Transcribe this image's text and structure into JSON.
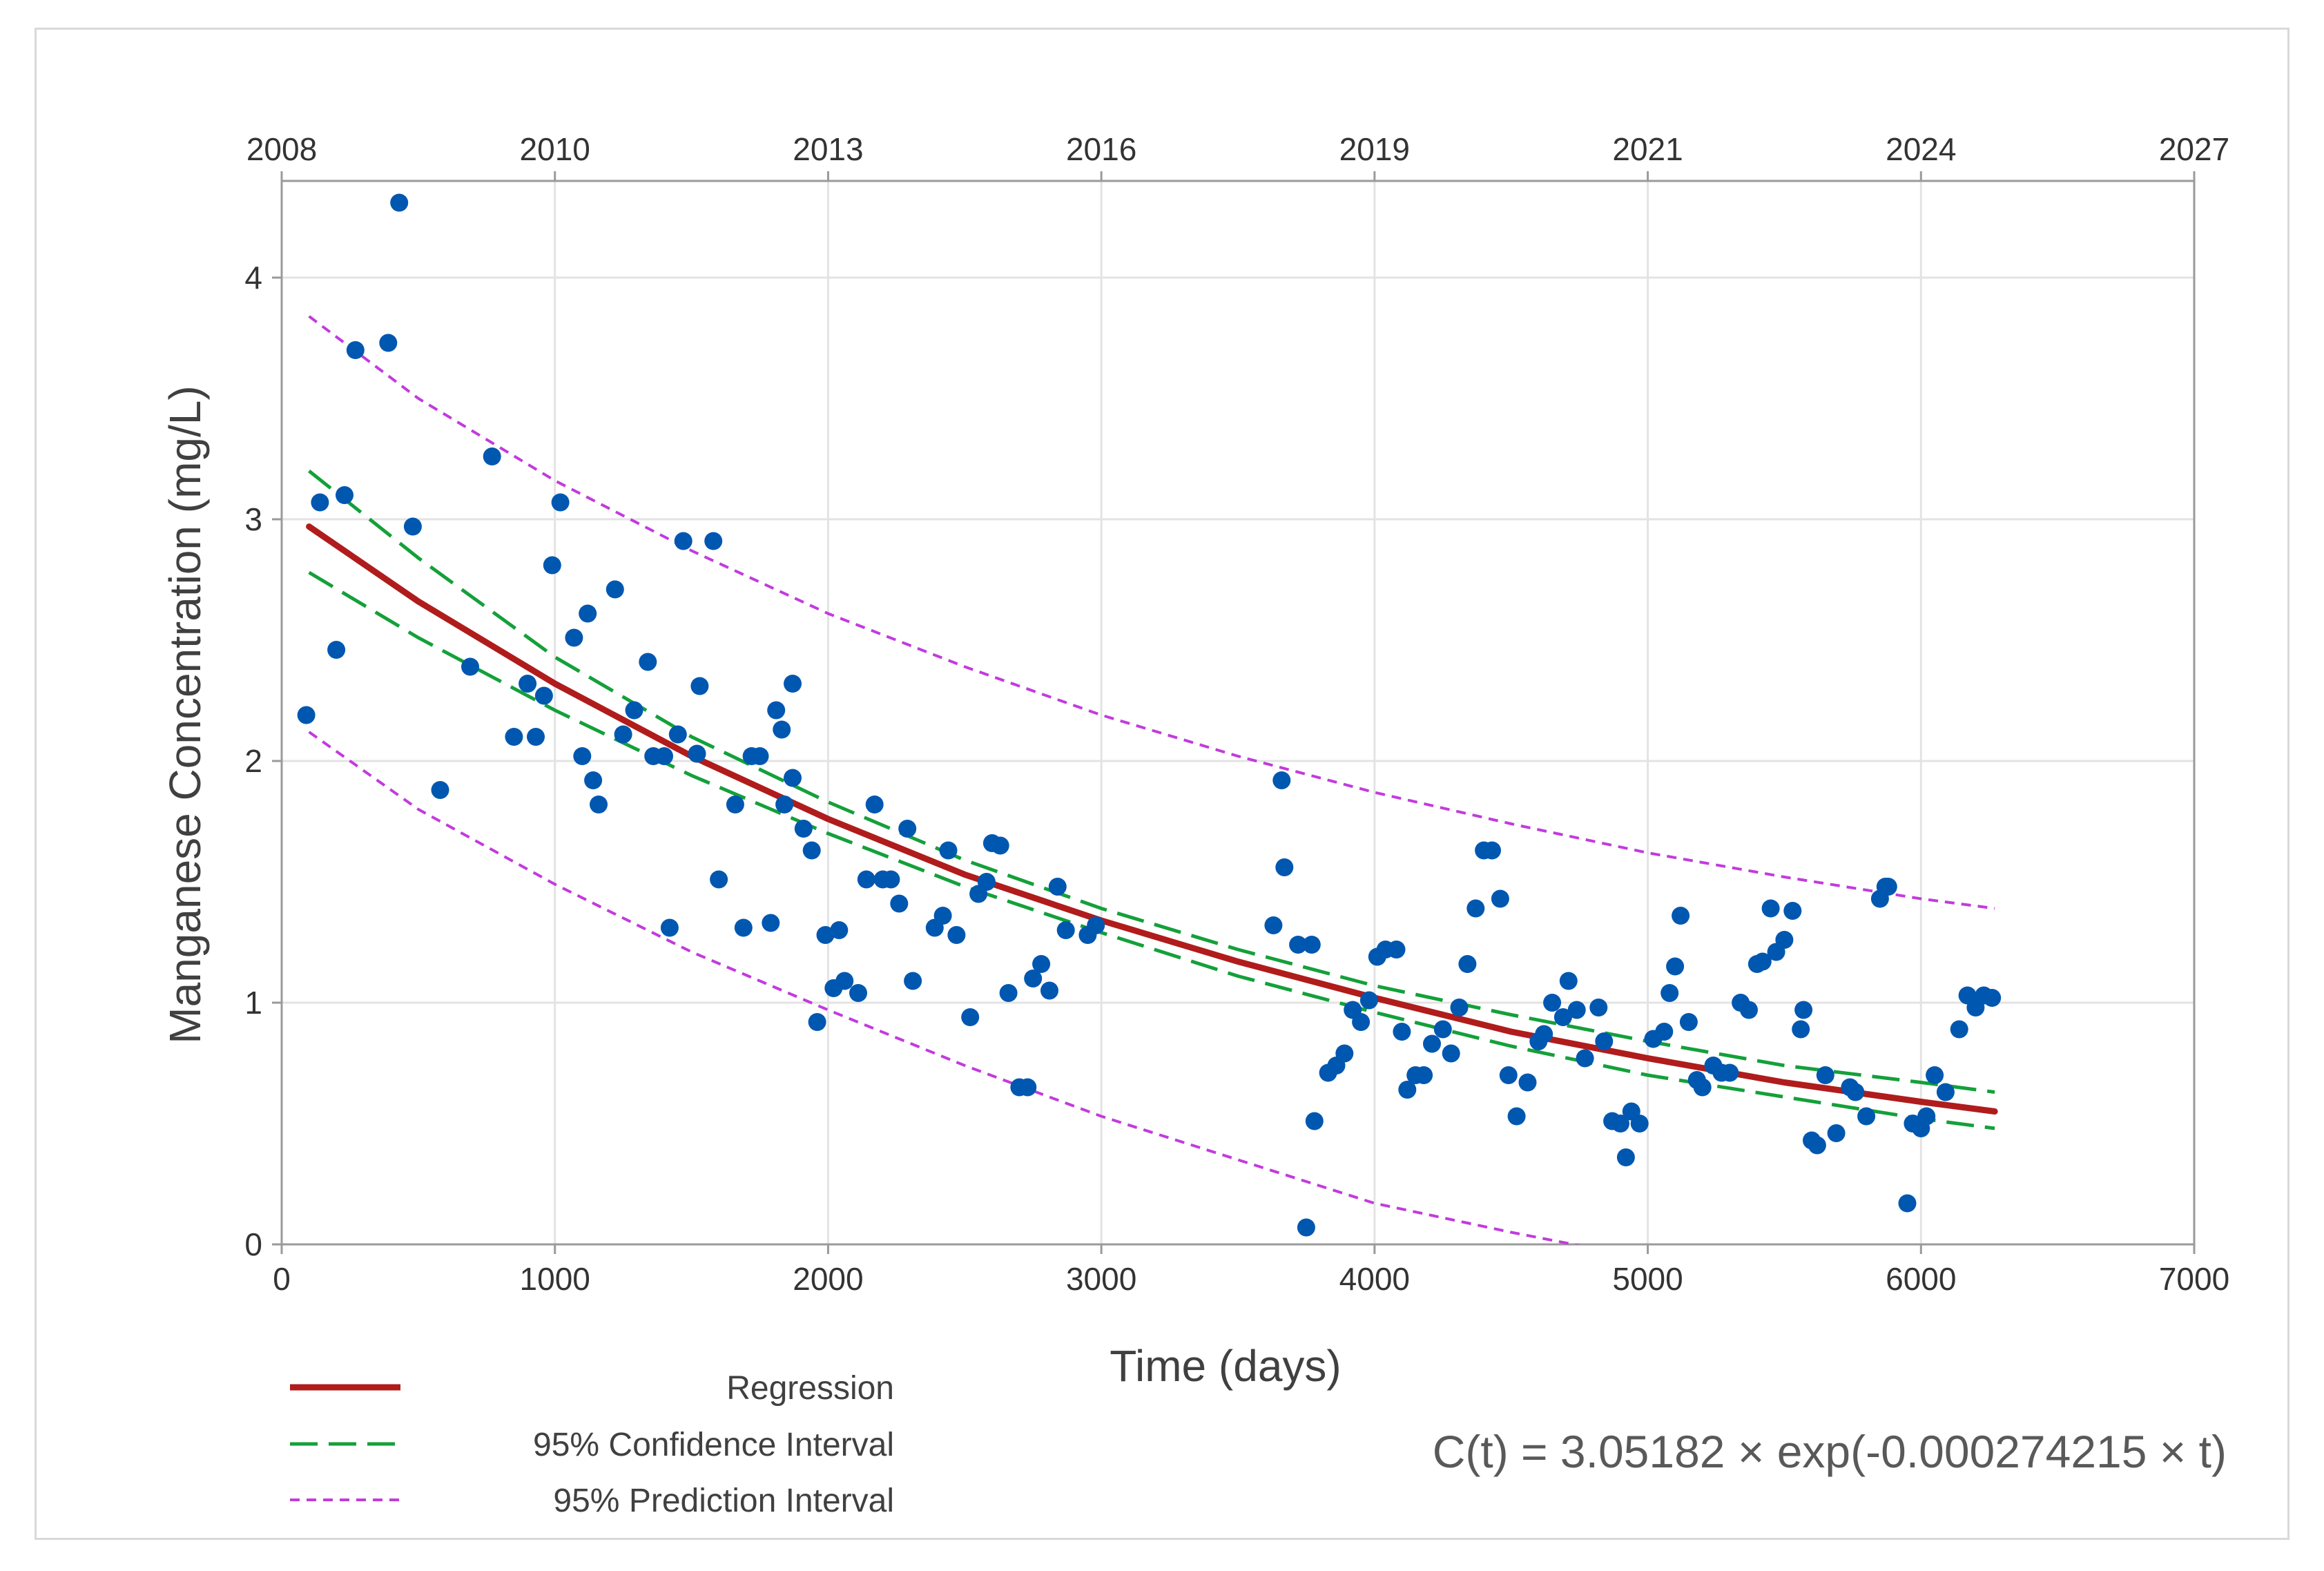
{
  "chart_data": {
    "type": "scatter",
    "title": "",
    "xlabel": "Time (days)",
    "ylabel": "Manganese Concentration (mg/L)",
    "xlim": [
      0,
      7000
    ],
    "ylim": [
      0,
      4.4
    ],
    "x_ticks": [
      0,
      1000,
      2000,
      3000,
      4000,
      5000,
      6000,
      7000
    ],
    "y_ticks": [
      0,
      1,
      2,
      3,
      4
    ],
    "top_axis_ticks": [
      {
        "x": 0,
        "label": "2008"
      },
      {
        "x": 1000,
        "label": "2010"
      },
      {
        "x": 2000,
        "label": "2013"
      },
      {
        "x": 3000,
        "label": "2016"
      },
      {
        "x": 4000,
        "label": "2019"
      },
      {
        "x": 5000,
        "label": "2021"
      },
      {
        "x": 6000,
        "label": "2024"
      },
      {
        "x": 7000,
        "label": "2027"
      }
    ],
    "grid": true,
    "legend_position": "bottom-left",
    "equation": "C(t) = 3.05182 × exp(-0.000274215 × t)",
    "colors": {
      "points": "#0057b0",
      "regression": "#b01c1c",
      "confidence": "#14a03a",
      "prediction": "#c23bdc",
      "grid": "#e3e3e3",
      "axis": "#9a9a9a"
    },
    "series": [
      {
        "name": "Regression",
        "style": "solid",
        "x": [
          100,
          500,
          1000,
          1500,
          2000,
          2500,
          3000,
          3500,
          4000,
          4500,
          5000,
          5500,
          6000,
          6270
        ],
        "y": [
          2.97,
          2.66,
          2.32,
          2.02,
          1.76,
          1.53,
          1.34,
          1.17,
          1.02,
          0.88,
          0.77,
          0.67,
          0.59,
          0.55
        ]
      },
      {
        "name": "95% Confidence Interval",
        "style": "dashed",
        "x": [
          100,
          500,
          1000,
          1500,
          2000,
          2500,
          3000,
          3500,
          4000,
          4500,
          5000,
          5500,
          6000,
          6270
        ],
        "y_upper": [
          3.2,
          2.84,
          2.43,
          2.1,
          1.83,
          1.59,
          1.39,
          1.22,
          1.07,
          0.95,
          0.84,
          0.74,
          0.67,
          0.63
        ],
        "y_lower": [
          2.78,
          2.51,
          2.21,
          1.94,
          1.7,
          1.48,
          1.29,
          1.11,
          0.96,
          0.82,
          0.7,
          0.61,
          0.52,
          0.48
        ]
      },
      {
        "name": "95% Prediction Interval",
        "style": "dotted",
        "x": [
          100,
          500,
          1000,
          1500,
          2000,
          2500,
          3000,
          3500,
          4000,
          4500,
          5000,
          5500,
          6000,
          6270
        ],
        "y_upper": [
          3.84,
          3.5,
          3.16,
          2.87,
          2.61,
          2.39,
          2.19,
          2.02,
          1.87,
          1.74,
          1.62,
          1.52,
          1.43,
          1.39
        ],
        "y_lower": [
          2.12,
          1.8,
          1.49,
          1.21,
          0.97,
          0.74,
          0.53,
          0.35,
          0.17,
          0.05,
          -0.06,
          -0.16,
          -0.24,
          -0.28
        ]
      },
      {
        "name": "Observations",
        "style": "points",
        "points": [
          [
            90,
            2.19
          ],
          [
            140,
            3.07
          ],
          [
            200,
            2.46
          ],
          [
            230,
            3.1
          ],
          [
            270,
            3.7
          ],
          [
            390,
            3.73
          ],
          [
            430,
            4.31
          ],
          [
            480,
            2.97
          ],
          [
            580,
            1.88
          ],
          [
            690,
            2.39
          ],
          [
            770,
            3.26
          ],
          [
            850,
            2.1
          ],
          [
            900,
            2.32
          ],
          [
            930,
            2.1
          ],
          [
            960,
            2.27
          ],
          [
            990,
            2.81
          ],
          [
            1020,
            3.07
          ],
          [
            1070,
            2.51
          ],
          [
            1100,
            2.02
          ],
          [
            1120,
            2.61
          ],
          [
            1140,
            1.92
          ],
          [
            1160,
            1.82
          ],
          [
            1220,
            2.71
          ],
          [
            1250,
            2.11
          ],
          [
            1290,
            2.21
          ],
          [
            1340,
            2.41
          ],
          [
            1360,
            2.02
          ],
          [
            1400,
            2.02
          ],
          [
            1420,
            1.31
          ],
          [
            1450,
            2.11
          ],
          [
            1470,
            2.91
          ],
          [
            1520,
            2.03
          ],
          [
            1530,
            2.31
          ],
          [
            1580,
            2.91
          ],
          [
            1600,
            1.51
          ],
          [
            1660,
            1.82
          ],
          [
            1690,
            1.31
          ],
          [
            1720,
            2.02
          ],
          [
            1750,
            2.02
          ],
          [
            1790,
            1.33
          ],
          [
            1810,
            2.21
          ],
          [
            1830,
            2.13
          ],
          [
            1840,
            1.82
          ],
          [
            1870,
            2.32
          ],
          [
            1870,
            1.93
          ],
          [
            1910,
            1.72
          ],
          [
            1940,
            1.63
          ],
          [
            1960,
            0.92
          ],
          [
            1990,
            1.28
          ],
          [
            2020,
            1.06
          ],
          [
            2040,
            1.3
          ],
          [
            2060,
            1.09
          ],
          [
            2110,
            1.04
          ],
          [
            2140,
            1.51
          ],
          [
            2170,
            1.82
          ],
          [
            2200,
            1.51
          ],
          [
            2230,
            1.51
          ],
          [
            2260,
            1.41
          ],
          [
            2290,
            1.72
          ],
          [
            2310,
            1.09
          ],
          [
            2390,
            1.31
          ],
          [
            2420,
            1.36
          ],
          [
            2440,
            1.63
          ],
          [
            2470,
            1.28
          ],
          [
            2520,
            0.94
          ],
          [
            2550,
            1.45
          ],
          [
            2580,
            1.5
          ],
          [
            2600,
            1.66
          ],
          [
            2630,
            1.65
          ],
          [
            2660,
            1.04
          ],
          [
            2700,
            0.65
          ],
          [
            2730,
            0.65
          ],
          [
            2750,
            1.1
          ],
          [
            2780,
            1.16
          ],
          [
            2810,
            1.05
          ],
          [
            2840,
            1.48
          ],
          [
            2870,
            1.3
          ],
          [
            2950,
            1.28
          ],
          [
            2980,
            1.32
          ],
          [
            3630,
            1.32
          ],
          [
            3660,
            1.92
          ],
          [
            3670,
            1.56
          ],
          [
            3720,
            1.24
          ],
          [
            3750,
            0.07
          ],
          [
            3770,
            1.24
          ],
          [
            3780,
            0.51
          ],
          [
            3830,
            0.71
          ],
          [
            3860,
            0.74
          ],
          [
            3890,
            0.79
          ],
          [
            3920,
            0.97
          ],
          [
            3950,
            0.92
          ],
          [
            3980,
            1.01
          ],
          [
            4010,
            1.19
          ],
          [
            4040,
            1.22
          ],
          [
            4080,
            1.22
          ],
          [
            4100,
            0.88
          ],
          [
            4120,
            0.64
          ],
          [
            4150,
            0.7
          ],
          [
            4180,
            0.7
          ],
          [
            4210,
            0.83
          ],
          [
            4250,
            0.89
          ],
          [
            4280,
            0.79
          ],
          [
            4310,
            0.98
          ],
          [
            4340,
            1.16
          ],
          [
            4370,
            1.39
          ],
          [
            4400,
            1.63
          ],
          [
            4430,
            1.63
          ],
          [
            4460,
            1.43
          ],
          [
            4490,
            0.7
          ],
          [
            4520,
            0.53
          ],
          [
            4560,
            0.67
          ],
          [
            4600,
            0.84
          ],
          [
            4620,
            0.87
          ],
          [
            4650,
            1.0
          ],
          [
            4690,
            0.94
          ],
          [
            4710,
            1.09
          ],
          [
            4740,
            0.97
          ],
          [
            4770,
            0.77
          ],
          [
            4820,
            0.98
          ],
          [
            4840,
            0.84
          ],
          [
            4870,
            0.51
          ],
          [
            4900,
            0.5
          ],
          [
            4920,
            0.36
          ],
          [
            4940,
            0.55
          ],
          [
            4970,
            0.5
          ],
          [
            5020,
            0.85
          ],
          [
            5060,
            0.88
          ],
          [
            5080,
            1.04
          ],
          [
            5100,
            1.15
          ],
          [
            5120,
            1.36
          ],
          [
            5150,
            0.92
          ],
          [
            5180,
            0.68
          ],
          [
            5200,
            0.65
          ],
          [
            5240,
            0.74
          ],
          [
            5270,
            0.71
          ],
          [
            5300,
            0.71
          ],
          [
            5340,
            1.0
          ],
          [
            5370,
            0.97
          ],
          [
            5400,
            1.16
          ],
          [
            5420,
            1.17
          ],
          [
            5450,
            1.39
          ],
          [
            5470,
            1.21
          ],
          [
            5500,
            1.26
          ],
          [
            5530,
            1.38
          ],
          [
            5560,
            0.89
          ],
          [
            5570,
            0.97
          ],
          [
            5600,
            0.43
          ],
          [
            5620,
            0.41
          ],
          [
            5650,
            0.7
          ],
          [
            5690,
            0.46
          ],
          [
            5740,
            0.65
          ],
          [
            5760,
            0.63
          ],
          [
            5800,
            0.53
          ],
          [
            5850,
            1.43
          ],
          [
            5870,
            1.48
          ],
          [
            5880,
            1.48
          ],
          [
            5950,
            0.17
          ],
          [
            5970,
            0.5
          ],
          [
            6000,
            0.48
          ],
          [
            6020,
            0.53
          ],
          [
            6050,
            0.7
          ],
          [
            6090,
            0.63
          ],
          [
            6140,
            0.89
          ],
          [
            6170,
            1.03
          ],
          [
            6200,
            0.98
          ],
          [
            6230,
            1.03
          ],
          [
            6260,
            1.02
          ]
        ]
      }
    ]
  },
  "legend": {
    "regression_label": "Regression",
    "confidence_label": "95% Confidence Interval",
    "prediction_label": "95% Prediction Interval"
  }
}
